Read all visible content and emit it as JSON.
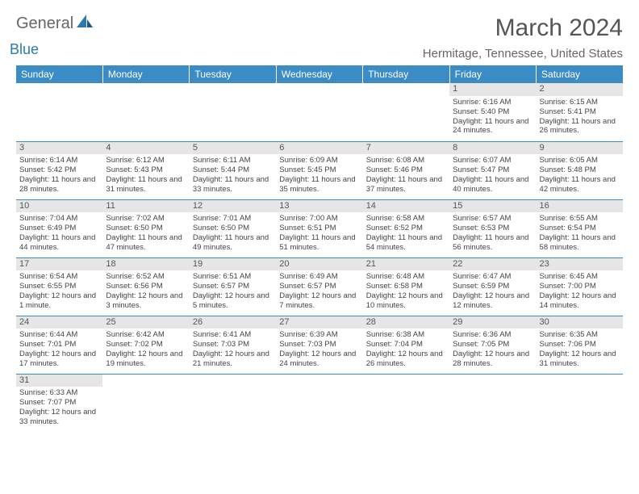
{
  "brand": {
    "part1": "General",
    "part2": "Blue"
  },
  "title": "March 2024",
  "location": "Hermitage, Tennessee, United States",
  "colors": {
    "header_bg": "#3b8bc4",
    "header_text": "#ffffff",
    "daynum_bg": "#e6e6e6",
    "cell_border": "#3b8bc4",
    "body_text": "#444444",
    "title_text": "#555555"
  },
  "daysOfWeek": [
    "Sunday",
    "Monday",
    "Tuesday",
    "Wednesday",
    "Thursday",
    "Friday",
    "Saturday"
  ],
  "weeks": [
    [
      {
        "n": "",
        "sr": "",
        "ss": "",
        "dl": ""
      },
      {
        "n": "",
        "sr": "",
        "ss": "",
        "dl": ""
      },
      {
        "n": "",
        "sr": "",
        "ss": "",
        "dl": ""
      },
      {
        "n": "",
        "sr": "",
        "ss": "",
        "dl": ""
      },
      {
        "n": "",
        "sr": "",
        "ss": "",
        "dl": ""
      },
      {
        "n": "1",
        "sr": "Sunrise: 6:16 AM",
        "ss": "Sunset: 5:40 PM",
        "dl": "Daylight: 11 hours and 24 minutes."
      },
      {
        "n": "2",
        "sr": "Sunrise: 6:15 AM",
        "ss": "Sunset: 5:41 PM",
        "dl": "Daylight: 11 hours and 26 minutes."
      }
    ],
    [
      {
        "n": "3",
        "sr": "Sunrise: 6:14 AM",
        "ss": "Sunset: 5:42 PM",
        "dl": "Daylight: 11 hours and 28 minutes."
      },
      {
        "n": "4",
        "sr": "Sunrise: 6:12 AM",
        "ss": "Sunset: 5:43 PM",
        "dl": "Daylight: 11 hours and 31 minutes."
      },
      {
        "n": "5",
        "sr": "Sunrise: 6:11 AM",
        "ss": "Sunset: 5:44 PM",
        "dl": "Daylight: 11 hours and 33 minutes."
      },
      {
        "n": "6",
        "sr": "Sunrise: 6:09 AM",
        "ss": "Sunset: 5:45 PM",
        "dl": "Daylight: 11 hours and 35 minutes."
      },
      {
        "n": "7",
        "sr": "Sunrise: 6:08 AM",
        "ss": "Sunset: 5:46 PM",
        "dl": "Daylight: 11 hours and 37 minutes."
      },
      {
        "n": "8",
        "sr": "Sunrise: 6:07 AM",
        "ss": "Sunset: 5:47 PM",
        "dl": "Daylight: 11 hours and 40 minutes."
      },
      {
        "n": "9",
        "sr": "Sunrise: 6:05 AM",
        "ss": "Sunset: 5:48 PM",
        "dl": "Daylight: 11 hours and 42 minutes."
      }
    ],
    [
      {
        "n": "10",
        "sr": "Sunrise: 7:04 AM",
        "ss": "Sunset: 6:49 PM",
        "dl": "Daylight: 11 hours and 44 minutes."
      },
      {
        "n": "11",
        "sr": "Sunrise: 7:02 AM",
        "ss": "Sunset: 6:50 PM",
        "dl": "Daylight: 11 hours and 47 minutes."
      },
      {
        "n": "12",
        "sr": "Sunrise: 7:01 AM",
        "ss": "Sunset: 6:50 PM",
        "dl": "Daylight: 11 hours and 49 minutes."
      },
      {
        "n": "13",
        "sr": "Sunrise: 7:00 AM",
        "ss": "Sunset: 6:51 PM",
        "dl": "Daylight: 11 hours and 51 minutes."
      },
      {
        "n": "14",
        "sr": "Sunrise: 6:58 AM",
        "ss": "Sunset: 6:52 PM",
        "dl": "Daylight: 11 hours and 54 minutes."
      },
      {
        "n": "15",
        "sr": "Sunrise: 6:57 AM",
        "ss": "Sunset: 6:53 PM",
        "dl": "Daylight: 11 hours and 56 minutes."
      },
      {
        "n": "16",
        "sr": "Sunrise: 6:55 AM",
        "ss": "Sunset: 6:54 PM",
        "dl": "Daylight: 11 hours and 58 minutes."
      }
    ],
    [
      {
        "n": "17",
        "sr": "Sunrise: 6:54 AM",
        "ss": "Sunset: 6:55 PM",
        "dl": "Daylight: 12 hours and 1 minute."
      },
      {
        "n": "18",
        "sr": "Sunrise: 6:52 AM",
        "ss": "Sunset: 6:56 PM",
        "dl": "Daylight: 12 hours and 3 minutes."
      },
      {
        "n": "19",
        "sr": "Sunrise: 6:51 AM",
        "ss": "Sunset: 6:57 PM",
        "dl": "Daylight: 12 hours and 5 minutes."
      },
      {
        "n": "20",
        "sr": "Sunrise: 6:49 AM",
        "ss": "Sunset: 6:57 PM",
        "dl": "Daylight: 12 hours and 7 minutes."
      },
      {
        "n": "21",
        "sr": "Sunrise: 6:48 AM",
        "ss": "Sunset: 6:58 PM",
        "dl": "Daylight: 12 hours and 10 minutes."
      },
      {
        "n": "22",
        "sr": "Sunrise: 6:47 AM",
        "ss": "Sunset: 6:59 PM",
        "dl": "Daylight: 12 hours and 12 minutes."
      },
      {
        "n": "23",
        "sr": "Sunrise: 6:45 AM",
        "ss": "Sunset: 7:00 PM",
        "dl": "Daylight: 12 hours and 14 minutes."
      }
    ],
    [
      {
        "n": "24",
        "sr": "Sunrise: 6:44 AM",
        "ss": "Sunset: 7:01 PM",
        "dl": "Daylight: 12 hours and 17 minutes."
      },
      {
        "n": "25",
        "sr": "Sunrise: 6:42 AM",
        "ss": "Sunset: 7:02 PM",
        "dl": "Daylight: 12 hours and 19 minutes."
      },
      {
        "n": "26",
        "sr": "Sunrise: 6:41 AM",
        "ss": "Sunset: 7:03 PM",
        "dl": "Daylight: 12 hours and 21 minutes."
      },
      {
        "n": "27",
        "sr": "Sunrise: 6:39 AM",
        "ss": "Sunset: 7:03 PM",
        "dl": "Daylight: 12 hours and 24 minutes."
      },
      {
        "n": "28",
        "sr": "Sunrise: 6:38 AM",
        "ss": "Sunset: 7:04 PM",
        "dl": "Daylight: 12 hours and 26 minutes."
      },
      {
        "n": "29",
        "sr": "Sunrise: 6:36 AM",
        "ss": "Sunset: 7:05 PM",
        "dl": "Daylight: 12 hours and 28 minutes."
      },
      {
        "n": "30",
        "sr": "Sunrise: 6:35 AM",
        "ss": "Sunset: 7:06 PM",
        "dl": "Daylight: 12 hours and 31 minutes."
      }
    ],
    [
      {
        "n": "31",
        "sr": "Sunrise: 6:33 AM",
        "ss": "Sunset: 7:07 PM",
        "dl": "Daylight: 12 hours and 33 minutes."
      },
      {
        "n": "",
        "sr": "",
        "ss": "",
        "dl": ""
      },
      {
        "n": "",
        "sr": "",
        "ss": "",
        "dl": ""
      },
      {
        "n": "",
        "sr": "",
        "ss": "",
        "dl": ""
      },
      {
        "n": "",
        "sr": "",
        "ss": "",
        "dl": ""
      },
      {
        "n": "",
        "sr": "",
        "ss": "",
        "dl": ""
      },
      {
        "n": "",
        "sr": "",
        "ss": "",
        "dl": ""
      }
    ]
  ]
}
